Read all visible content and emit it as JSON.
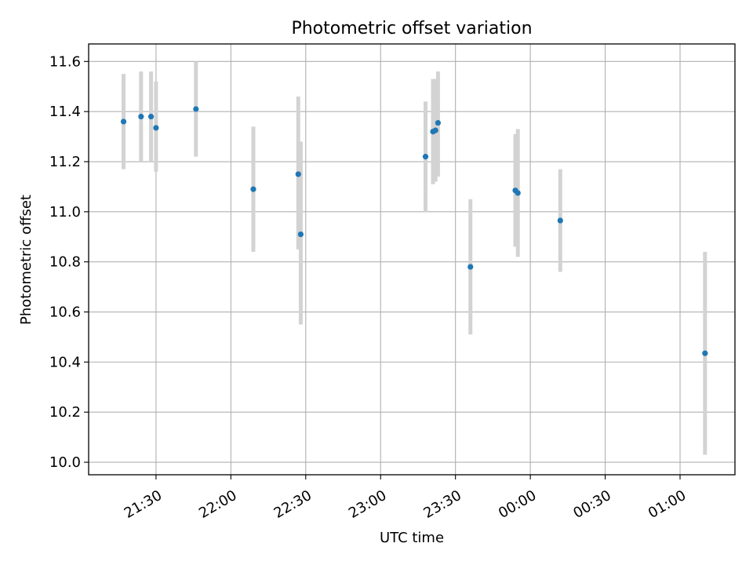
{
  "chart_data": {
    "type": "scatter",
    "title": "Photometric offset variation",
    "xlabel": "UTC time",
    "ylabel": "Photometric offset",
    "x_ticks": [
      "21:30",
      "22:00",
      "22:30",
      "23:00",
      "23:30",
      "00:00",
      "00:30",
      "01:00"
    ],
    "y_ticks": [
      "10.0",
      "10.2",
      "10.4",
      "10.6",
      "10.8",
      "11.0",
      "11.2",
      "11.4",
      "11.6"
    ],
    "xlim": [
      "21:03",
      "01:22"
    ],
    "ylim": [
      9.95,
      11.67
    ],
    "grid": true,
    "point_color": "#1f77b4",
    "errorbar_color": "#d3d3d3",
    "points": [
      {
        "time": "21:17",
        "y": 11.36,
        "ylow": 11.17,
        "yhigh": 11.55
      },
      {
        "time": "21:24",
        "y": 11.38,
        "ylow": 11.2,
        "yhigh": 11.56
      },
      {
        "time": "21:28",
        "y": 11.38,
        "ylow": 11.2,
        "yhigh": 11.56
      },
      {
        "time": "21:30",
        "y": 11.335,
        "ylow": 11.16,
        "yhigh": 11.52
      },
      {
        "time": "21:46",
        "y": 11.41,
        "ylow": 11.22,
        "yhigh": 11.6
      },
      {
        "time": "22:09",
        "y": 11.09,
        "ylow": 10.84,
        "yhigh": 11.34
      },
      {
        "time": "22:27",
        "y": 11.15,
        "ylow": 10.85,
        "yhigh": 11.46
      },
      {
        "time": "22:28",
        "y": 10.91,
        "ylow": 10.55,
        "yhigh": 11.28
      },
      {
        "time": "23:18",
        "y": 11.22,
        "ylow": 11.0,
        "yhigh": 11.44
      },
      {
        "time": "23:21",
        "y": 11.32,
        "ylow": 11.11,
        "yhigh": 11.53
      },
      {
        "time": "23:22",
        "y": 11.325,
        "ylow": 11.12,
        "yhigh": 11.53
      },
      {
        "time": "23:23",
        "y": 11.355,
        "ylow": 11.14,
        "yhigh": 11.56
      },
      {
        "time": "23:36",
        "y": 10.78,
        "ylow": 10.51,
        "yhigh": 11.05
      },
      {
        "time": "23:54",
        "y": 11.085,
        "ylow": 10.86,
        "yhigh": 11.31
      },
      {
        "time": "23:55",
        "y": 11.075,
        "ylow": 10.82,
        "yhigh": 11.33
      },
      {
        "time": "00:12",
        "y": 10.965,
        "ylow": 10.76,
        "yhigh": 11.17
      },
      {
        "time": "01:10",
        "y": 10.435,
        "ylow": 10.03,
        "yhigh": 10.84
      }
    ]
  }
}
